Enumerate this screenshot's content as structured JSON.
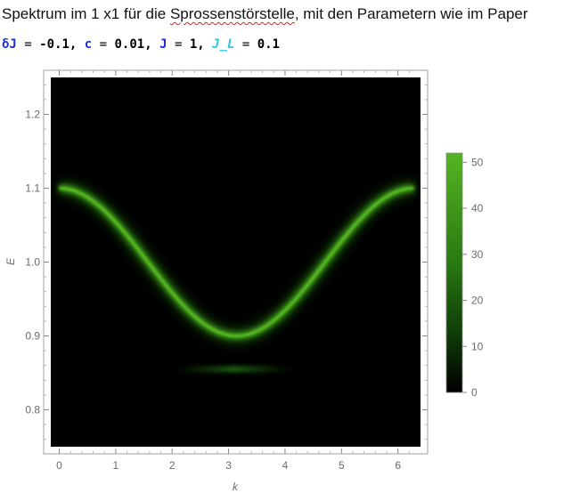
{
  "notebook": {
    "title_prefix": "Spektrum im 1 x1 für die ",
    "title_misspelled": "Sprossenstörstelle",
    "title_suffix": ", mit den Parametern wie im Paper",
    "code": {
      "delta_j_sym": "δJ",
      "delta_j_val": "-0.1,",
      "c_sym": "c",
      "c_val": "0.01,",
      "j_sym": "J",
      "j_val": "1,",
      "jl_sym": "J_L",
      "jl_val": "0.1",
      "eq": " = "
    }
  },
  "chart_data": {
    "type": "heatmap",
    "title": "",
    "xlabel": "k",
    "ylabel": "E",
    "xlim": [
      -0.15,
      6.4
    ],
    "ylim": [
      0.75,
      1.25
    ],
    "x_ticks": [
      0,
      1,
      2,
      3,
      4,
      5,
      6
    ],
    "y_ticks": [
      0.8,
      0.9,
      1.0,
      1.1,
      1.2
    ],
    "y_tick_labels": [
      "0.8",
      "0.9",
      "1.0",
      "1.1",
      "1.2"
    ],
    "band": {
      "center": 1.0,
      "amplitude": 0.1,
      "formula": "E(k) = 1 + 0.1·cos(k)",
      "k_range": [
        0,
        6.2832
      ],
      "peak_intensity": 50
    },
    "flat_level": {
      "E": 0.855,
      "k_range": [
        2.0,
        4.2
      ],
      "peak_intensity": 6
    },
    "colorbar": {
      "min": 0,
      "max": 52,
      "ticks": [
        0,
        10,
        20,
        30,
        40,
        50
      ],
      "color_low": "#000000",
      "color_high": "#55b521"
    },
    "background_color": "#000000",
    "frame_color": "#9a9a9a"
  }
}
